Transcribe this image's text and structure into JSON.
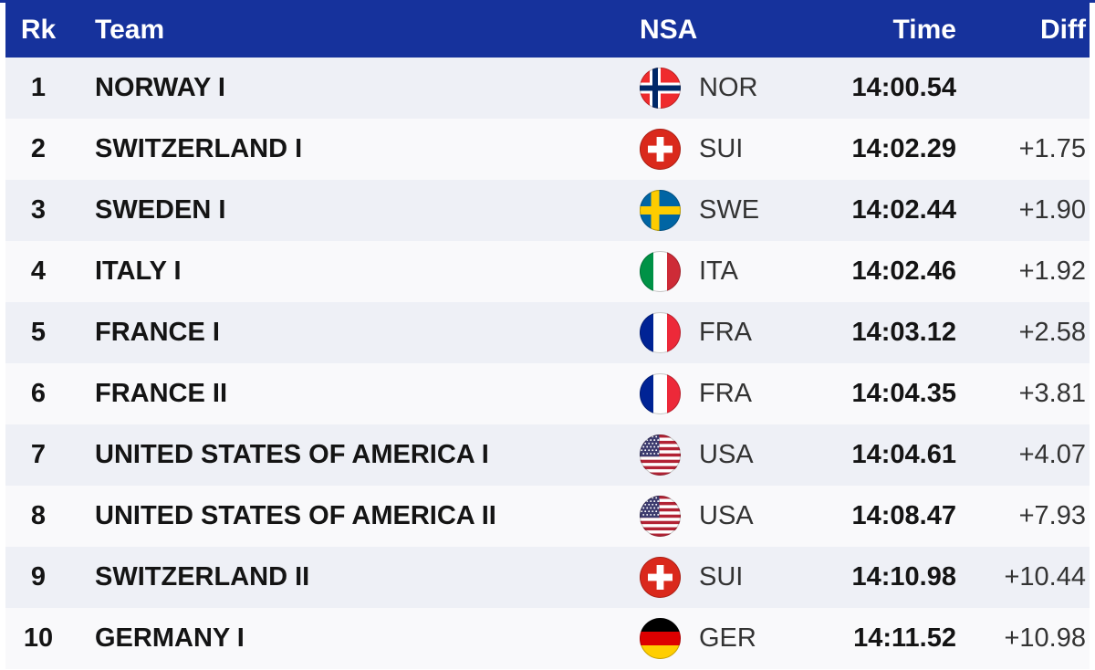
{
  "table": {
    "accent_color": "#16329C",
    "row_color_odd": "#EEF0F6",
    "row_color_even": "#F9F9FB",
    "columns": [
      "Rk",
      "Team",
      "NSA",
      "Time",
      "Diff"
    ],
    "rows": [
      {
        "rank": "1",
        "team": "NORWAY I",
        "flag": "nor",
        "nsa": "NOR",
        "time": "14:00.54",
        "diff": ""
      },
      {
        "rank": "2",
        "team": "SWITZERLAND I",
        "flag": "sui",
        "nsa": "SUI",
        "time": "14:02.29",
        "diff": "+1.75"
      },
      {
        "rank": "3",
        "team": "SWEDEN I",
        "flag": "swe",
        "nsa": "SWE",
        "time": "14:02.44",
        "diff": "+1.90"
      },
      {
        "rank": "4",
        "team": "ITALY I",
        "flag": "ita",
        "nsa": "ITA",
        "time": "14:02.46",
        "diff": "+1.92"
      },
      {
        "rank": "5",
        "team": "FRANCE I",
        "flag": "fra",
        "nsa": "FRA",
        "time": "14:03.12",
        "diff": "+2.58"
      },
      {
        "rank": "6",
        "team": "FRANCE II",
        "flag": "fra",
        "nsa": "FRA",
        "time": "14:04.35",
        "diff": "+3.81"
      },
      {
        "rank": "7",
        "team": "UNITED STATES OF AMERICA I",
        "flag": "usa",
        "nsa": "USA",
        "time": "14:04.61",
        "diff": "+4.07"
      },
      {
        "rank": "8",
        "team": "UNITED STATES OF AMERICA II",
        "flag": "usa",
        "nsa": "USA",
        "time": "14:08.47",
        "diff": "+7.93"
      },
      {
        "rank": "9",
        "team": "SWITZERLAND II",
        "flag": "sui",
        "nsa": "SUI",
        "time": "14:10.98",
        "diff": "+10.44"
      },
      {
        "rank": "10",
        "team": "GERMANY I",
        "flag": "ger",
        "nsa": "GER",
        "time": "14:11.52",
        "diff": "+10.98"
      }
    ]
  }
}
